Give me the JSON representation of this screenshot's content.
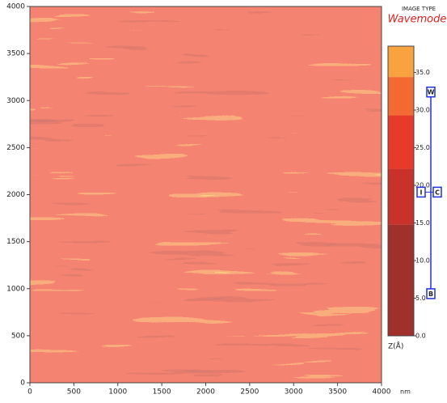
{
  "chart_data": {
    "type": "heatmap",
    "subtitle": "IMAGE TYPE",
    "title": "Wavemode",
    "xlabel": "nm",
    "xlim": [
      0,
      4000
    ],
    "xticks": [
      0,
      500,
      1000,
      1500,
      2000,
      2500,
      3000,
      3500,
      4000
    ],
    "ylim": [
      0,
      4000
    ],
    "yticks": [
      0,
      500,
      1000,
      1500,
      2000,
      2500,
      3000,
      3500,
      4000
    ],
    "colorbar": {
      "label": "Z(Å)",
      "lim": [
        0,
        38.5
      ],
      "ticks": [
        {
          "value": 0,
          "label": "0.0"
        },
        {
          "value": 5,
          "label": "5.0"
        },
        {
          "value": 10,
          "label": "10.0"
        },
        {
          "value": 15,
          "label": "15.0"
        },
        {
          "value": 20,
          "label": "20.0"
        },
        {
          "value": 25,
          "label": "25.0"
        },
        {
          "value": 30,
          "label": "30.0"
        },
        {
          "value": 35,
          "label": "35.0"
        }
      ],
      "boundaries": [
        0,
        14.8,
        22.2,
        29.3,
        34.4,
        38.5
      ],
      "colors": [
        "#a0302c",
        "#c8322a",
        "#e83a2a",
        "#f26a32",
        "#f8a33e"
      ]
    },
    "markers": [
      {
        "label": "W",
        "value": 32.4
      },
      {
        "label": "I",
        "value": 19.1
      },
      {
        "label": "C",
        "value": 19.1
      },
      {
        "label": "B",
        "value": 5.6
      }
    ]
  }
}
